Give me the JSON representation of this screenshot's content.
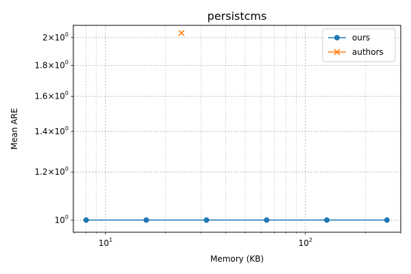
{
  "chart_data": {
    "type": "line",
    "title": "persistcms",
    "xlabel": "Memory (KB)",
    "ylabel": "Mean ARE",
    "x_scale": "log",
    "y_scale": "log",
    "xlim": [
      6.9,
      300
    ],
    "ylim": [
      0.955,
      2.095
    ],
    "grid": true,
    "legend_position": "top-right",
    "x_ticks": [
      {
        "value": 10,
        "base": "10",
        "exp": "1"
      },
      {
        "value": 100,
        "base": "10",
        "exp": "2"
      }
    ],
    "y_ticks": [
      {
        "value": 1.0,
        "mant": "10",
        "exp": "0"
      },
      {
        "value": 1.2,
        "mant": "1.2×10",
        "exp": "0"
      },
      {
        "value": 1.4,
        "mant": "1.4×10",
        "exp": "0"
      },
      {
        "value": 1.6,
        "mant": "1.6×10",
        "exp": "0"
      },
      {
        "value": 1.8,
        "mant": "1.8×10",
        "exp": "0"
      },
      {
        "value": 2.0,
        "mant": "2×10",
        "exp": "0"
      }
    ],
    "series": [
      {
        "name": "ours",
        "color": "#1f77b4",
        "marker": "circle",
        "line": true,
        "x": [
          8,
          16,
          32,
          64,
          128,
          256
        ],
        "y": [
          1.0,
          1.0,
          1.0,
          1.0,
          1.0,
          1.0
        ]
      },
      {
        "name": "authors",
        "color": "#ff7f0e",
        "marker": "x",
        "line": false,
        "x": [
          24
        ],
        "y": [
          2.035
        ]
      }
    ]
  }
}
